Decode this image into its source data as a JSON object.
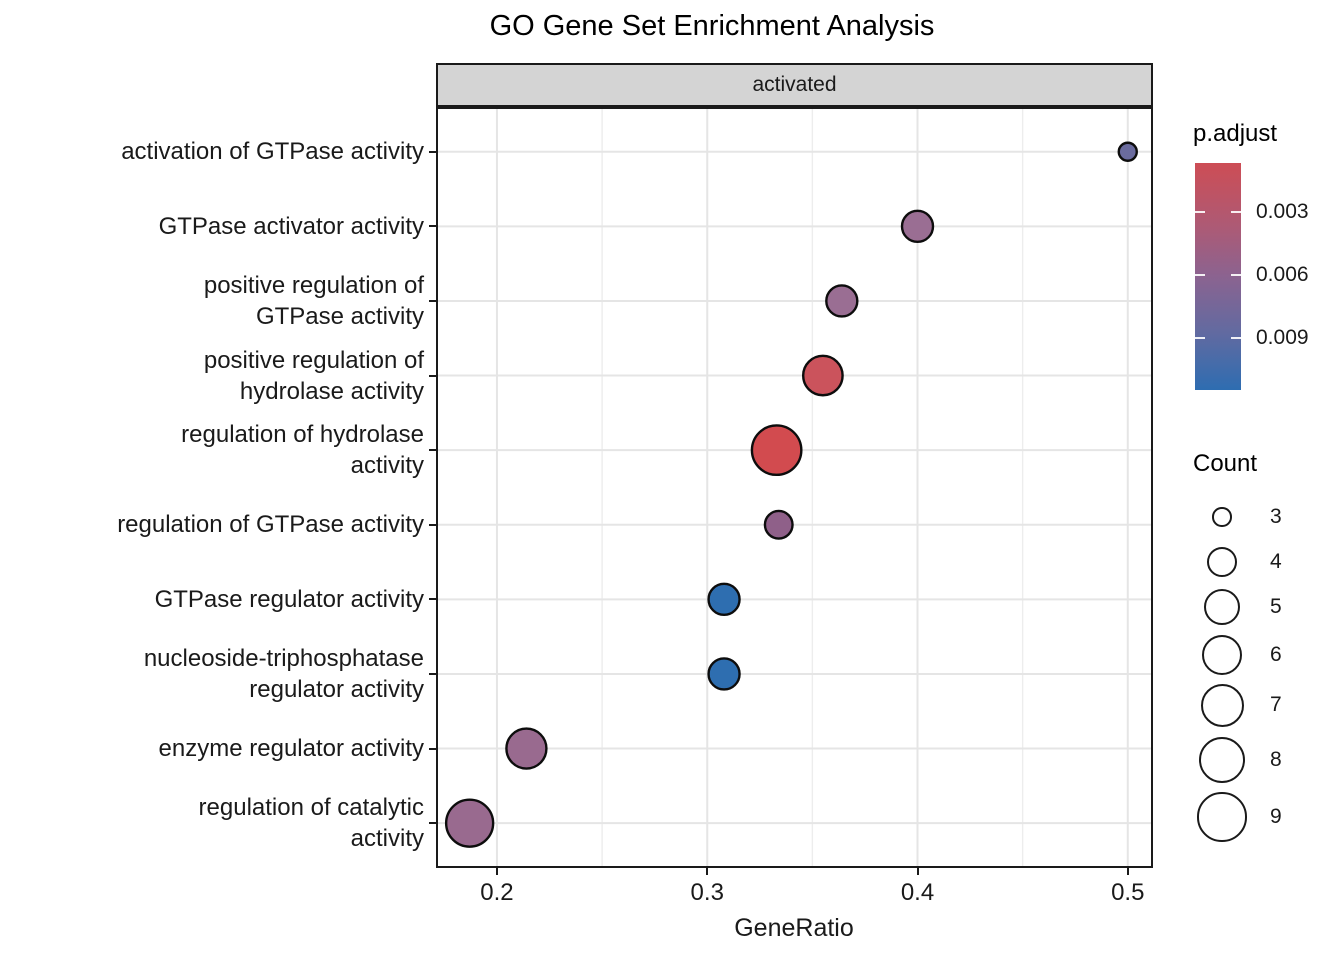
{
  "title": "GO Gene Set Enrichment Analysis",
  "facet_label": "activated",
  "x_axis": {
    "title": "GeneRatio",
    "tick_labels": [
      "0.2",
      "0.3",
      "0.4",
      "0.5"
    ]
  },
  "legend": {
    "p_adjust": {
      "title": "p.adjust",
      "tick_labels": [
        "0.003",
        "0.006",
        "0.009"
      ],
      "gradient_top_color": "#cd4d55",
      "gradient_mid_color": "#8b6390",
      "gradient_bottom_color": "#2e6db1"
    },
    "count": {
      "title": "Count",
      "labels": [
        "3",
        "4",
        "5",
        "6",
        "7",
        "8",
        "9"
      ]
    }
  },
  "chart_data": {
    "type": "scatter",
    "title": "GO Gene Set Enrichment Analysis",
    "facet": "activated",
    "xlabel": "GeneRatio",
    "ylabel": "",
    "x_ticks": [
      0.2,
      0.3,
      0.4,
      0.5
    ],
    "x_minor_ticks": [
      0.25,
      0.35,
      0.45
    ],
    "x_domain": [
      0.171,
      0.512
    ],
    "grid": true,
    "legend_position": "right",
    "color_encoding": "p.adjust",
    "size_encoding": "Count",
    "color_scale": {
      "tick_values": [
        0.003,
        0.006,
        0.009
      ],
      "low_color": "#cd4d55",
      "high_color": "#2e6db1"
    },
    "size_scale_counts": [
      3,
      4,
      5,
      6,
      7,
      8,
      9
    ],
    "points": [
      {
        "label": "activation of GTPase activity",
        "label_lines": [
          "activation of GTPase activity"
        ],
        "gene_ratio": 0.5,
        "count": 3,
        "p_adjust": 0.0075,
        "color": "#6a6b9e",
        "radius": 9
      },
      {
        "label": "GTPase activator activity",
        "label_lines": [
          "GTPase activator activity"
        ],
        "gene_ratio": 0.4,
        "count": 4,
        "p_adjust": 0.005,
        "color": "#9a6e93",
        "radius": 15.5
      },
      {
        "label": "positive regulation of GTPase activity",
        "label_lines": [
          "positive regulation of",
          "GTPase activity"
        ],
        "gene_ratio": 0.364,
        "count": 4,
        "p_adjust": 0.005,
        "color": "#9a6e93",
        "radius": 15.5
      },
      {
        "label": "positive regulation of hydrolase activity",
        "label_lines": [
          "positive regulation of",
          "hydrolase activity"
        ],
        "gene_ratio": 0.355,
        "count": 6,
        "p_adjust": 0.002,
        "color": "#cb535c",
        "radius": 19.7
      },
      {
        "label": "regulation of hydrolase activity",
        "label_lines": [
          "regulation of hydrolase",
          "activity"
        ],
        "gene_ratio": 0.333,
        "count": 9,
        "p_adjust": 0.0013,
        "color": "#d24b4f",
        "radius": 24.7
      },
      {
        "label": "regulation of GTPase activity",
        "label_lines": [
          "regulation of GTPase activity"
        ],
        "gene_ratio": 0.334,
        "count": 4,
        "p_adjust": 0.0055,
        "color": "#8f6089",
        "radius": 13.8
      },
      {
        "label": "GTPase regulator activity",
        "label_lines": [
          "GTPase regulator activity"
        ],
        "gene_ratio": 0.308,
        "count": 4,
        "p_adjust": 0.011,
        "color": "#2e6eb0",
        "radius": 15.5
      },
      {
        "label": "nucleoside-triphosphatase regulator activity",
        "label_lines": [
          "nucleoside-triphosphatase",
          "regulator activity"
        ],
        "gene_ratio": 0.308,
        "count": 4,
        "p_adjust": 0.011,
        "color": "#2e6eb0",
        "radius": 15.5
      },
      {
        "label": "enzyme regulator activity",
        "label_lines": [
          "enzyme regulator activity"
        ],
        "gene_ratio": 0.214,
        "count": 6,
        "p_adjust": 0.005,
        "color": "#996a8f",
        "radius": 20
      },
      {
        "label": "regulation of catalytic activity",
        "label_lines": [
          "regulation of catalytic",
          "activity"
        ],
        "gene_ratio": 0.187,
        "count": 8,
        "p_adjust": 0.005,
        "color": "#996a8f",
        "radius": 23.5
      }
    ]
  }
}
